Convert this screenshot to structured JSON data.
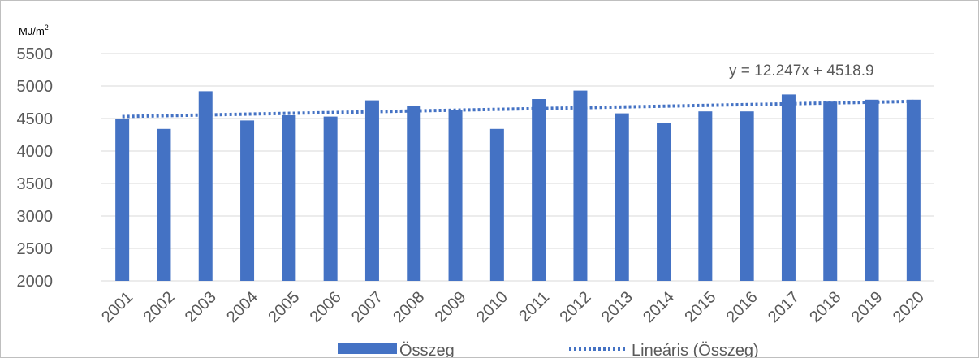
{
  "chart_data": {
    "type": "bar",
    "unit_label": "MJ/m",
    "unit_sup": "2",
    "categories": [
      "2001",
      "2002",
      "2003",
      "2004",
      "2005",
      "2006",
      "2007",
      "2008",
      "2009",
      "2010",
      "2011",
      "2012",
      "2013",
      "2014",
      "2015",
      "2016",
      "2017",
      "2018",
      "2019",
      "2020"
    ],
    "series": [
      {
        "name": "Összeg",
        "color": "#4472c4",
        "values": [
          4500,
          4340,
          4920,
          4470,
          4550,
          4530,
          4780,
          4690,
          4630,
          4340,
          4800,
          4930,
          4580,
          4430,
          4610,
          4610,
          4870,
          4760,
          4790,
          4790
        ]
      }
    ],
    "trendline": {
      "name": "Lineáris (Összeg)",
      "type": "linear",
      "slope": 12.247,
      "intercept": 4518.9,
      "equation": "y = 12.247x + 4518.9",
      "style": "dotted",
      "color": "#4472c4"
    },
    "y_ticks": [
      "5500",
      "5000",
      "4500",
      "4000",
      "3500",
      "3000",
      "2500",
      "2000"
    ],
    "ylim": [
      2000,
      5500
    ],
    "grid": true,
    "legend": "bottom"
  }
}
